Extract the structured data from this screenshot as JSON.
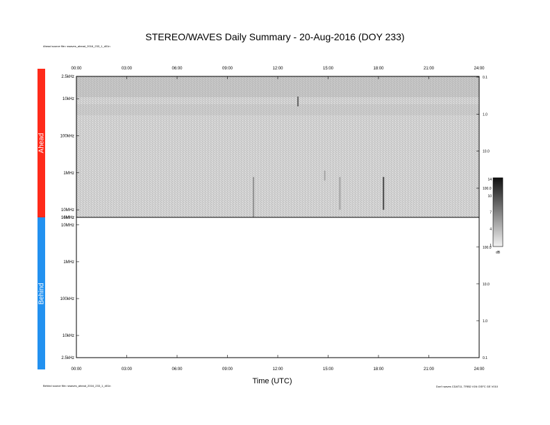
{
  "title": "STEREO/WAVES Daily Summary - 20-Aug-2016 (DOY 233)",
  "ahead_source_note": "Ahead source file= swaves_ahead_2016_233_1_d01n",
  "behind_source_note": "Behind source file= swaves_ahead_2016_233_1_d01n",
  "software_note": "Don't waves CDAT11, TRBD V1N GSFC GE V010",
  "sidebar": {
    "ahead": {
      "label": "Ahead",
      "color": "#ff2a1a"
    },
    "behind": {
      "label": "Behind",
      "color": "#2291f0"
    }
  },
  "colorbar": {
    "ticks": [
      "14",
      "10",
      "7",
      "4",
      "1"
    ],
    "unit": "dB",
    "range": [
      1,
      14
    ]
  },
  "chart_data": [
    {
      "panel": "ahead",
      "type": "heatmap",
      "xlabel": "Time (UTC)",
      "x_ticks": [
        "00:00",
        "03:00",
        "06:00",
        "09:00",
        "12:00",
        "15:00",
        "18:00",
        "21:00",
        "24:00"
      ],
      "x_range_hours": [
        0,
        24
      ],
      "y_ticks_left": [
        "2.5kHz",
        "10kHz",
        "100kHz",
        "1MHz",
        "10MHz",
        "16MHz"
      ],
      "y_ticks_right": [
        "0.1",
        "1.0",
        "10.0",
        "100.0"
      ],
      "background_db": 3,
      "bursts": [
        {
          "time_h": 10.55,
          "freq_top": "1MHz",
          "freq_bottom": "16MHz",
          "intensity_db": 7
        },
        {
          "time_h": 13.2,
          "freq_top": "10kHz",
          "freq_bottom": "10kHz",
          "intensity_db": 10
        },
        {
          "time_h": 14.8,
          "freq_top": "1MHz",
          "freq_bottom": "1MHz",
          "intensity_db": 6
        },
        {
          "time_h": 15.7,
          "freq_top": "1MHz",
          "freq_bottom": "10MHz",
          "intensity_db": 6
        },
        {
          "time_h": 18.3,
          "freq_top": "1MHz",
          "freq_bottom": "10MHz",
          "intensity_db": 12
        }
      ]
    },
    {
      "panel": "behind",
      "type": "heatmap",
      "x_ticks": [
        "00:00",
        "03:00",
        "06:00",
        "09:00",
        "12:00",
        "15:00",
        "18:00",
        "21:00",
        "24:00"
      ],
      "x_range_hours": [
        0,
        24
      ],
      "y_ticks_left": [
        "16MHz",
        "10MHz",
        "1MHz",
        "100kHz",
        "10kHz",
        "2.5kHz"
      ],
      "y_ticks_right": [
        "100.0",
        "10.0",
        "1.0",
        "0.1"
      ],
      "data": "none"
    }
  ]
}
